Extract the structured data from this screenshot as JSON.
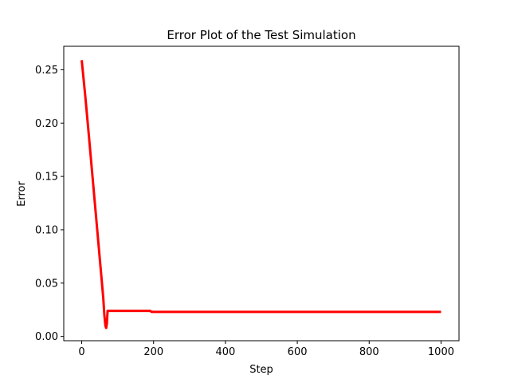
{
  "chart_data": {
    "type": "line",
    "title": "Error Plot of the Test Simulation",
    "xlabel": "Step",
    "ylabel": "Error",
    "xlim": [
      -50,
      1050
    ],
    "ylim": [
      -0.004,
      0.272
    ],
    "xticks": [
      0,
      200,
      400,
      600,
      800,
      1000
    ],
    "xtick_labels": [
      "0",
      "200",
      "400",
      "600",
      "800",
      "1000"
    ],
    "yticks": [
      0.0,
      0.05,
      0.1,
      0.15,
      0.2,
      0.25
    ],
    "ytick_labels": [
      "0.00",
      "0.05",
      "0.10",
      "0.15",
      "0.20",
      "0.25"
    ],
    "grid": false,
    "series": [
      {
        "color": "#ff0000",
        "x": [
          0,
          10,
          20,
          30,
          40,
          50,
          60,
          63,
          66,
          68,
          70,
          72,
          75,
          100,
          150,
          190,
          195,
          200,
          300,
          400,
          500,
          600,
          700,
          800,
          900,
          1000
        ],
        "y": [
          0.259,
          0.225,
          0.188,
          0.15,
          0.112,
          0.074,
          0.036,
          0.02,
          0.01,
          0.008,
          0.012,
          0.024,
          0.024,
          0.024,
          0.024,
          0.024,
          0.023,
          0.023,
          0.023,
          0.023,
          0.023,
          0.023,
          0.023,
          0.023,
          0.023,
          0.023
        ]
      }
    ]
  }
}
